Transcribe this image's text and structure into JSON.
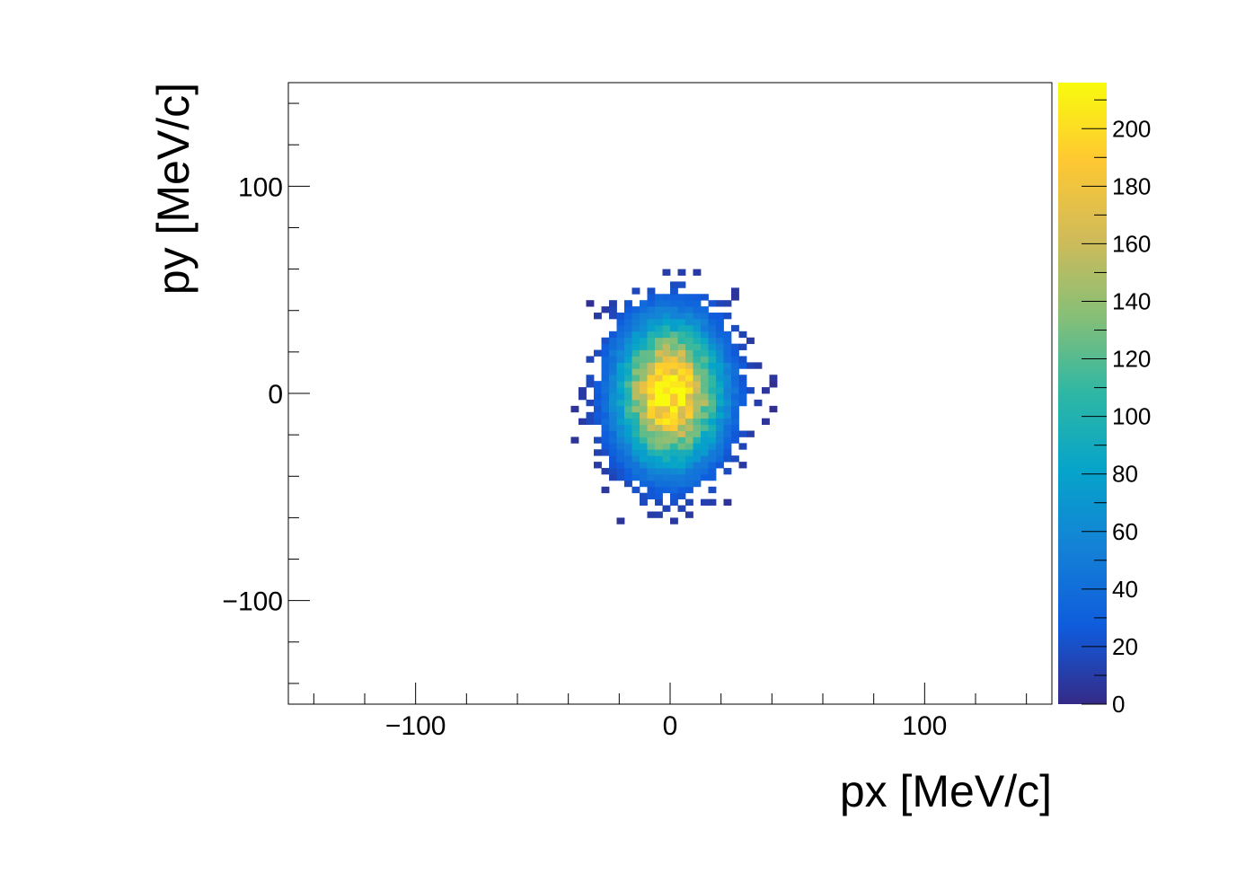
{
  "chart_data": {
    "type": "heatmap",
    "title": "",
    "xlabel": "px [MeV/c]",
    "ylabel": "py [MeV/c]",
    "xlim": [
      -150,
      150
    ],
    "ylim": [
      -150,
      150
    ],
    "x_ticks": [
      -100,
      0,
      100
    ],
    "y_ticks": [
      -100,
      0,
      100
    ],
    "x_tick_labels": [
      "−100",
      "0",
      "100"
    ],
    "y_tick_labels": [
      "−100",
      "0",
      "100"
    ],
    "colorbar": {
      "range": [
        0,
        216
      ],
      "ticks": [
        0,
        20,
        40,
        60,
        80,
        100,
        120,
        140,
        160,
        180,
        200
      ],
      "tick_labels": [
        "0",
        "20",
        "40",
        "60",
        "80",
        "100",
        "120",
        "140",
        "160",
        "180",
        "200"
      ],
      "palette": "kBird",
      "colors": [
        "#352a87",
        "#0f5cdd",
        "#1481d6",
        "#06a4ca",
        "#2eb7a4",
        "#87bf77",
        "#d1bb59",
        "#fec832",
        "#f9fb0e"
      ]
    },
    "bins": {
      "x_min": -150,
      "x_max": 150,
      "nx": 100,
      "y_min": -150,
      "y_max": 150,
      "ny": 100
    },
    "distribution": {
      "shape": "gaussian-2d",
      "x_mean": 0,
      "x_sigma": 14,
      "y_mean": 0,
      "y_sigma": 24,
      "peak": 216,
      "x_extent": [
        -50,
        50
      ],
      "y_extent": [
        -68,
        62
      ]
    },
    "grid": false,
    "legend": "none"
  }
}
